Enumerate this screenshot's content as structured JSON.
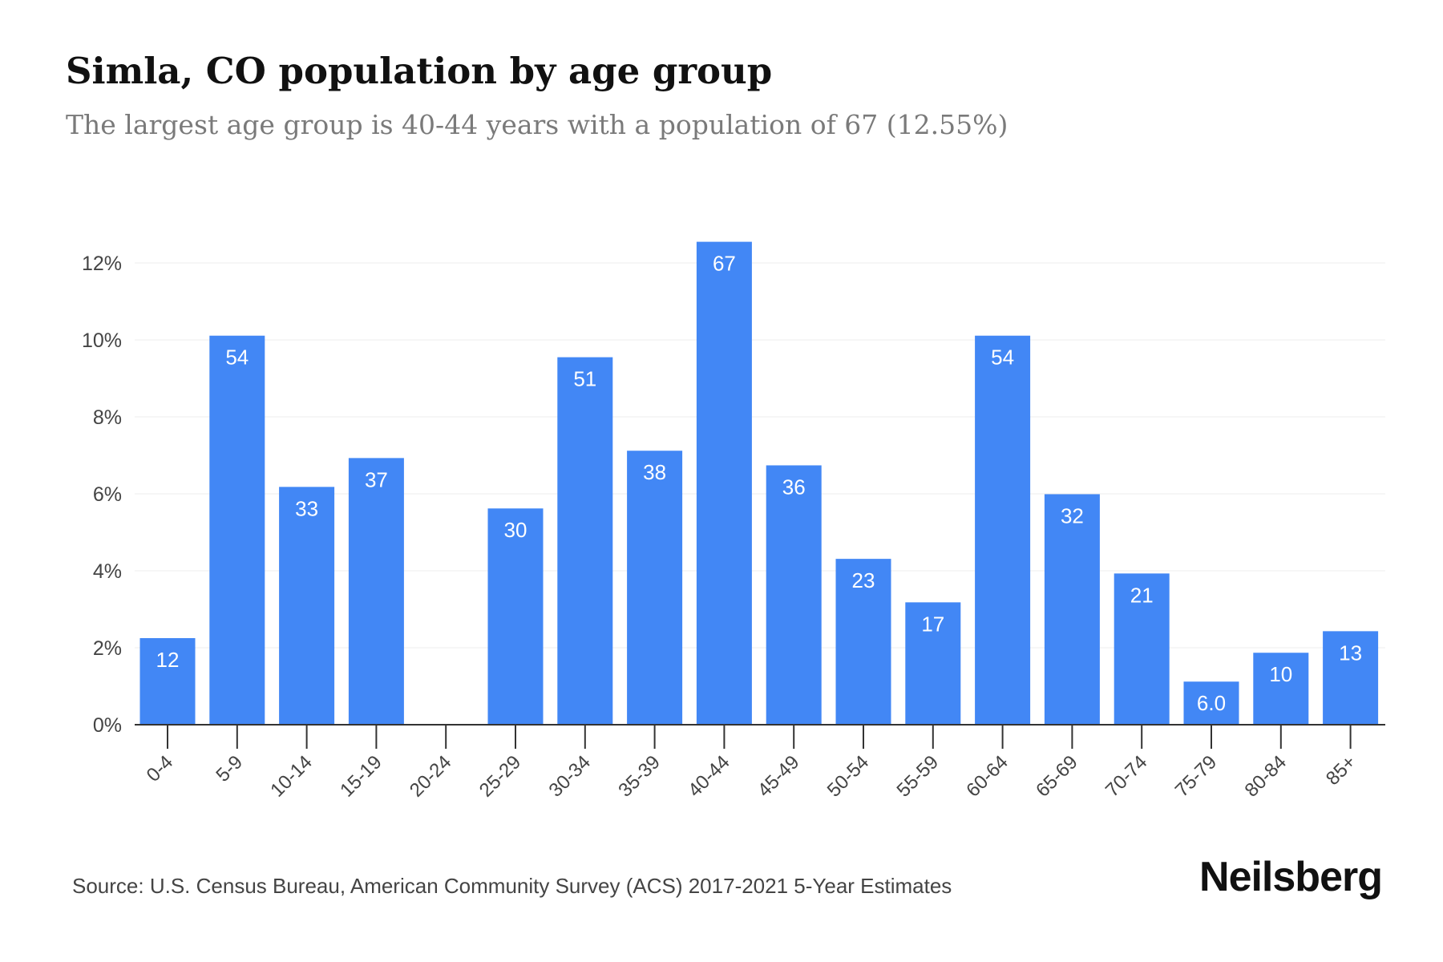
{
  "chart_data": {
    "type": "bar",
    "title": "Simla, CO population by age group",
    "subtitle": "The largest age group is 40-44 years with a population of 67 (12.55%)",
    "categories": [
      "0-4",
      "5-9",
      "10-14",
      "15-19",
      "20-24",
      "25-29",
      "30-34",
      "35-39",
      "40-44",
      "45-49",
      "50-54",
      "55-59",
      "60-64",
      "65-69",
      "70-74",
      "75-79",
      "80-84",
      "85+"
    ],
    "values": [
      2.25,
      10.11,
      6.18,
      6.93,
      0,
      5.62,
      9.55,
      7.12,
      12.55,
      6.74,
      4.31,
      3.18,
      10.11,
      5.99,
      3.93,
      1.12,
      1.87,
      2.43
    ],
    "data_labels": [
      "12",
      "54",
      "33",
      "37",
      "",
      "30",
      "51",
      "38",
      "67",
      "36",
      "23",
      "17",
      "54",
      "32",
      "21",
      "6.0",
      "10",
      "13"
    ],
    "yticks": [
      "0%",
      "2%",
      "4%",
      "6%",
      "8%",
      "10%",
      "12%"
    ],
    "ytick_values": [
      0,
      2,
      4,
      6,
      8,
      10,
      12
    ],
    "ylim": [
      0,
      12.55
    ],
    "xlabel": "",
    "ylabel": "",
    "grid": true,
    "bar_color": "#4287f5"
  },
  "footer": {
    "source": "Source: U.S. Census Bureau, American Community Survey (ACS) 2017-2021 5-Year Estimates",
    "brand": "Neilsberg"
  }
}
